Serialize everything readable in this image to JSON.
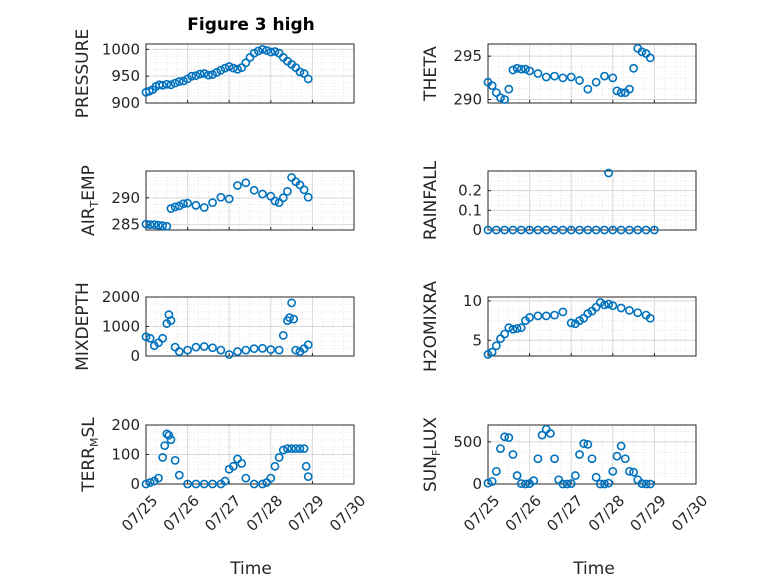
{
  "title": "Figure 3 high",
  "xlabel": "Time",
  "colors": {
    "marker": "#0072BD",
    "grid": "#e6e6e6",
    "axis": "#262626"
  },
  "chart_data": [
    {
      "type": "scatter",
      "ylabel": "PRESSURE",
      "ylabel_sub": "",
      "xlim": [
        "07/25",
        "07/30"
      ],
      "ylim": [
        900,
        1010
      ],
      "yticks": [
        900,
        950,
        1000
      ],
      "xticks": [
        "07/25",
        "07/26",
        "07/27",
        "07/28",
        "07/29",
        "07/30"
      ],
      "x_days": [
        0,
        0.08,
        0.16,
        0.24,
        0.32,
        0.4,
        0.5,
        0.6,
        0.7,
        0.8,
        0.9,
        1.0,
        1.1,
        1.2,
        1.3,
        1.4,
        1.5,
        1.6,
        1.7,
        1.8,
        1.9,
        2.0,
        2.1,
        2.2,
        2.3,
        2.4,
        2.5,
        2.6,
        2.7,
        2.8,
        2.9,
        3.0,
        3.1,
        3.2,
        3.3,
        3.4,
        3.5,
        3.6,
        3.7,
        3.8,
        3.9
      ],
      "y": [
        920,
        922,
        925,
        931,
        934,
        933,
        935,
        934,
        937,
        940,
        941,
        945,
        950,
        951,
        954,
        955,
        952,
        953,
        957,
        961,
        965,
        968,
        965,
        963,
        966,
        975,
        985,
        993,
        997,
        1000,
        998,
        995,
        996,
        993,
        985,
        978,
        972,
        966,
        958,
        955,
        945
      ]
    },
    {
      "type": "scatter",
      "ylabel": "THETA",
      "ylabel_sub": "",
      "xlim": [
        "07/25",
        "07/30"
      ],
      "ylim": [
        289.6,
        296.4
      ],
      "yticks": [
        290,
        295
      ],
      "xticks": [
        "07/25",
        "07/26",
        "07/27",
        "07/28",
        "07/29",
        "07/30"
      ],
      "x_days": [
        0,
        0.1,
        0.2,
        0.3,
        0.4,
        0.5,
        0.6,
        0.7,
        0.8,
        0.9,
        1.0,
        1.2,
        1.4,
        1.6,
        1.8,
        2.0,
        2.2,
        2.4,
        2.6,
        2.8,
        3.0,
        3.1,
        3.2,
        3.3,
        3.4,
        3.5,
        3.6,
        3.7,
        3.8,
        3.9
      ],
      "y": [
        292,
        291.6,
        290.8,
        290.2,
        290,
        291.2,
        293.4,
        293.6,
        293.5,
        293.5,
        293.3,
        293.0,
        292.6,
        292.7,
        292.5,
        292.6,
        292.2,
        291.2,
        292.0,
        292.7,
        292.5,
        291.0,
        290.8,
        290.8,
        291.2,
        293.6,
        295.9,
        295.5,
        295.3,
        294.8
      ]
    },
    {
      "type": "scatter",
      "ylabel": "AIR",
      "ylabel_sub": "T",
      "ylabel_suffix": "EMP",
      "xlim": [
        "07/25",
        "07/30"
      ],
      "ylim": [
        284,
        295
      ],
      "yticks": [
        285,
        290
      ],
      "xticks": [
        "07/25",
        "07/26",
        "07/27",
        "07/28",
        "07/29",
        "07/30"
      ],
      "x_days": [
        0,
        0.1,
        0.2,
        0.3,
        0.4,
        0.5,
        0.6,
        0.7,
        0.8,
        0.9,
        1.0,
        1.2,
        1.4,
        1.6,
        1.8,
        2.0,
        2.2,
        2.4,
        2.6,
        2.8,
        3.0,
        3.1,
        3.2,
        3.3,
        3.4,
        3.5,
        3.6,
        3.7,
        3.8,
        3.9
      ],
      "y": [
        285.1,
        285.0,
        285.0,
        284.9,
        284.8,
        284.7,
        288.0,
        288.3,
        288.5,
        288.9,
        289.0,
        288.6,
        288.2,
        289.1,
        290.1,
        289.8,
        292.3,
        292.8,
        291.4,
        290.7,
        290.3,
        289.4,
        289.1,
        290.0,
        291.2,
        293.8,
        293.0,
        292.4,
        291.5,
        290.1
      ]
    },
    {
      "type": "scatter",
      "ylabel": "RAINFALL",
      "ylabel_sub": "",
      "xlim": [
        "07/25",
        "07/30"
      ],
      "ylim": [
        0,
        0.3
      ],
      "yticks": [
        0,
        0.1,
        0.2
      ],
      "xticks": [
        "07/25",
        "07/26",
        "07/27",
        "07/28",
        "07/29",
        "07/30"
      ],
      "x_days": [
        0,
        0.2,
        0.4,
        0.6,
        0.8,
        1.0,
        1.2,
        1.4,
        1.6,
        1.8,
        2.0,
        2.2,
        2.4,
        2.6,
        2.8,
        2.9,
        3.0,
        3.2,
        3.4,
        3.6,
        3.8,
        4.0
      ],
      "y": [
        0,
        0,
        0,
        0,
        0,
        0,
        0,
        0,
        0,
        0,
        0,
        0,
        0,
        0,
        0,
        0.29,
        0,
        0,
        0,
        0,
        0,
        0
      ]
    },
    {
      "type": "scatter",
      "ylabel": "MIXDEPTH",
      "ylabel_sub": "",
      "xlim": [
        "07/25",
        "07/30"
      ],
      "ylim": [
        0,
        2000
      ],
      "yticks": [
        0,
        1000,
        2000
      ],
      "xticks": [
        "07/25",
        "07/26",
        "07/27",
        "07/28",
        "07/29",
        "07/30"
      ],
      "x_days": [
        0,
        0.1,
        0.2,
        0.3,
        0.4,
        0.5,
        0.55,
        0.6,
        0.7,
        0.8,
        1.0,
        1.2,
        1.4,
        1.6,
        1.8,
        2.0,
        2.2,
        2.4,
        2.6,
        2.8,
        3.0,
        3.2,
        3.3,
        3.4,
        3.45,
        3.5,
        3.55,
        3.6,
        3.7,
        3.8,
        3.9
      ],
      "y": [
        650,
        600,
        350,
        450,
        600,
        1100,
        1400,
        1200,
        300,
        150,
        200,
        300,
        320,
        280,
        200,
        50,
        150,
        200,
        250,
        260,
        220,
        200,
        700,
        1200,
        1300,
        1800,
        1250,
        200,
        150,
        250,
        380
      ]
    },
    {
      "type": "scatter",
      "ylabel": "H2OMIXRA",
      "ylabel_sub": "",
      "xlim": [
        "07/25",
        "07/30"
      ],
      "ylim": [
        3,
        10.5
      ],
      "yticks": [
        5,
        10
      ],
      "xticks": [
        "07/25",
        "07/26",
        "07/27",
        "07/28",
        "07/29",
        "07/30"
      ],
      "x_days": [
        0,
        0.1,
        0.2,
        0.3,
        0.4,
        0.5,
        0.6,
        0.7,
        0.8,
        0.9,
        1.0,
        1.2,
        1.4,
        1.6,
        1.8,
        2.0,
        2.1,
        2.2,
        2.3,
        2.4,
        2.5,
        2.6,
        2.7,
        2.8,
        2.9,
        3.0,
        3.2,
        3.4,
        3.6,
        3.8,
        3.9
      ],
      "y": [
        3.2,
        3.5,
        4.3,
        5.2,
        5.8,
        6.6,
        6.4,
        6.5,
        6.6,
        7.5,
        7.9,
        8.1,
        8.1,
        8.2,
        8.6,
        7.2,
        7.1,
        7.5,
        7.8,
        8.4,
        8.7,
        9.2,
        9.8,
        9.5,
        9.6,
        9.4,
        9.1,
        8.8,
        8.5,
        8.2,
        7.8
      ]
    },
    {
      "type": "scatter",
      "ylabel": "TERR",
      "ylabel_sub": "M",
      "ylabel_suffix": "SL",
      "xlim": [
        "07/25",
        "07/30"
      ],
      "ylim": [
        0,
        200
      ],
      "yticks": [
        0,
        100,
        200
      ],
      "xticks": [
        "07/25",
        "07/26",
        "07/27",
        "07/28",
        "07/29",
        "07/30"
      ],
      "x_days": [
        0,
        0.1,
        0.2,
        0.3,
        0.4,
        0.45,
        0.5,
        0.55,
        0.6,
        0.7,
        0.8,
        1.0,
        1.2,
        1.4,
        1.6,
        1.8,
        1.9,
        2.0,
        2.1,
        2.2,
        2.3,
        2.4,
        2.6,
        2.8,
        2.9,
        3.0,
        3.1,
        3.2,
        3.3,
        3.4,
        3.5,
        3.6,
        3.7,
        3.8,
        3.85,
        3.9
      ],
      "y": [
        0,
        5,
        10,
        20,
        90,
        130,
        170,
        165,
        150,
        80,
        30,
        0,
        0,
        0,
        0,
        0,
        10,
        50,
        60,
        85,
        70,
        20,
        0,
        0,
        5,
        20,
        60,
        90,
        115,
        120,
        120,
        120,
        120,
        120,
        60,
        25
      ]
    },
    {
      "type": "scatter",
      "ylabel": "SUN",
      "ylabel_sub": "F",
      "ylabel_suffix": "LUX",
      "xlim": [
        "07/25",
        "07/30"
      ],
      "ylim": [
        0,
        700
      ],
      "yticks": [
        0,
        500
      ],
      "xticks": [
        "07/25",
        "07/26",
        "07/27",
        "07/28",
        "07/29",
        "07/30"
      ],
      "x_days": [
        0,
        0.1,
        0.2,
        0.3,
        0.4,
        0.5,
        0.6,
        0.7,
        0.8,
        0.9,
        1.0,
        1.1,
        1.2,
        1.3,
        1.4,
        1.5,
        1.6,
        1.7,
        1.8,
        1.9,
        2.0,
        2.1,
        2.2,
        2.3,
        2.4,
        2.5,
        2.6,
        2.7,
        2.8,
        2.9,
        3.0,
        3.1,
        3.2,
        3.3,
        3.4,
        3.5,
        3.6,
        3.7,
        3.8,
        3.9
      ],
      "y": [
        10,
        30,
        150,
        420,
        560,
        550,
        350,
        100,
        5,
        0,
        5,
        40,
        300,
        580,
        650,
        600,
        300,
        50,
        0,
        0,
        5,
        100,
        350,
        480,
        470,
        300,
        80,
        0,
        0,
        10,
        150,
        330,
        450,
        300,
        150,
        140,
        50,
        5,
        0,
        0
      ]
    }
  ]
}
